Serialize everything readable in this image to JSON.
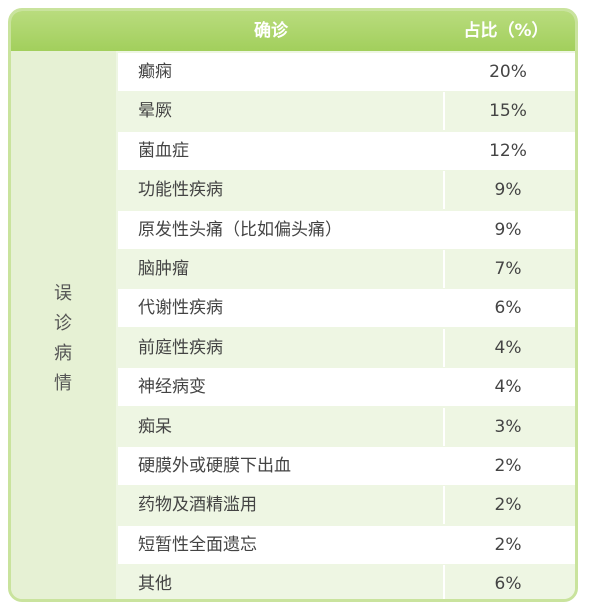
{
  "header": {
    "col1": "确诊",
    "col2": "占比（%）"
  },
  "side_label": "误诊病情",
  "table": {
    "rows": [
      [
        "癫痫",
        "20%"
      ],
      [
        "晕厥",
        "15%"
      ],
      [
        "菌血症",
        "12%"
      ],
      [
        "功能性疾病",
        "9%"
      ],
      [
        "原发性头痛（比如偏头痛）",
        "9%"
      ],
      [
        "脑肿瘤",
        "7%"
      ],
      [
        "代谢性疾病",
        "6%"
      ],
      [
        "前庭性疾病",
        "4%"
      ],
      [
        "神经病变",
        "4%"
      ],
      [
        "痴呆",
        "3%"
      ],
      [
        "硬膜外或硬膜下出血",
        "2%"
      ],
      [
        "药物及酒精滥用",
        "2%"
      ],
      [
        "短暂性全面遗忘",
        "2%"
      ],
      [
        "其他",
        "6%"
      ]
    ]
  }
}
